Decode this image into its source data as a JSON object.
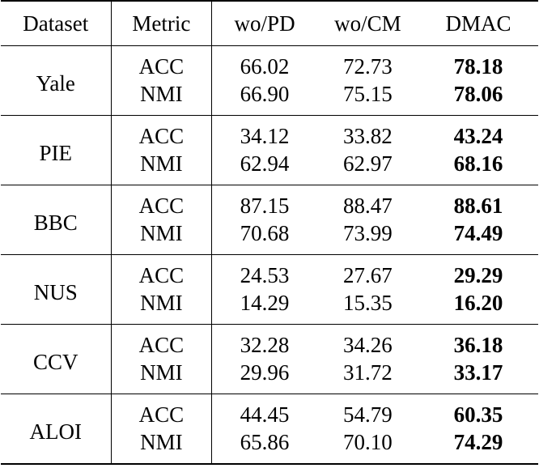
{
  "headers": [
    "Dataset",
    "Metric",
    "wo/PD",
    "wo/CM",
    "DMAC"
  ],
  "groups": [
    {
      "dataset": "Yale",
      "rows": [
        {
          "metric": "ACC",
          "wo_pd": "66.02",
          "wo_cm": "72.73",
          "dmac": "78.18"
        },
        {
          "metric": "NMI",
          "wo_pd": "66.90",
          "wo_cm": "75.15",
          "dmac": "78.06"
        }
      ]
    },
    {
      "dataset": "PIE",
      "rows": [
        {
          "metric": "ACC",
          "wo_pd": "34.12",
          "wo_cm": "33.82",
          "dmac": "43.24"
        },
        {
          "metric": "NMI",
          "wo_pd": "62.94",
          "wo_cm": "62.97",
          "dmac": "68.16"
        }
      ]
    },
    {
      "dataset": "BBC",
      "rows": [
        {
          "metric": "ACC",
          "wo_pd": "87.15",
          "wo_cm": "88.47",
          "dmac": "88.61"
        },
        {
          "metric": "NMI",
          "wo_pd": "70.68",
          "wo_cm": "73.99",
          "dmac": "74.49"
        }
      ]
    },
    {
      "dataset": "NUS",
      "rows": [
        {
          "metric": "ACC",
          "wo_pd": "24.53",
          "wo_cm": "27.67",
          "dmac": "29.29"
        },
        {
          "metric": "NMI",
          "wo_pd": "14.29",
          "wo_cm": "15.35",
          "dmac": "16.20"
        }
      ]
    },
    {
      "dataset": "CCV",
      "rows": [
        {
          "metric": "ACC",
          "wo_pd": "32.28",
          "wo_cm": "34.26",
          "dmac": "36.18"
        },
        {
          "metric": "NMI",
          "wo_pd": "29.96",
          "wo_cm": "31.72",
          "dmac": "33.17"
        }
      ]
    },
    {
      "dataset": "ALOI",
      "rows": [
        {
          "metric": "ACC",
          "wo_pd": "44.45",
          "wo_cm": "54.79",
          "dmac": "60.35"
        },
        {
          "metric": "NMI",
          "wo_pd": "65.86",
          "wo_cm": "70.10",
          "dmac": "74.29"
        }
      ]
    }
  ],
  "bold_column": "DMAC"
}
